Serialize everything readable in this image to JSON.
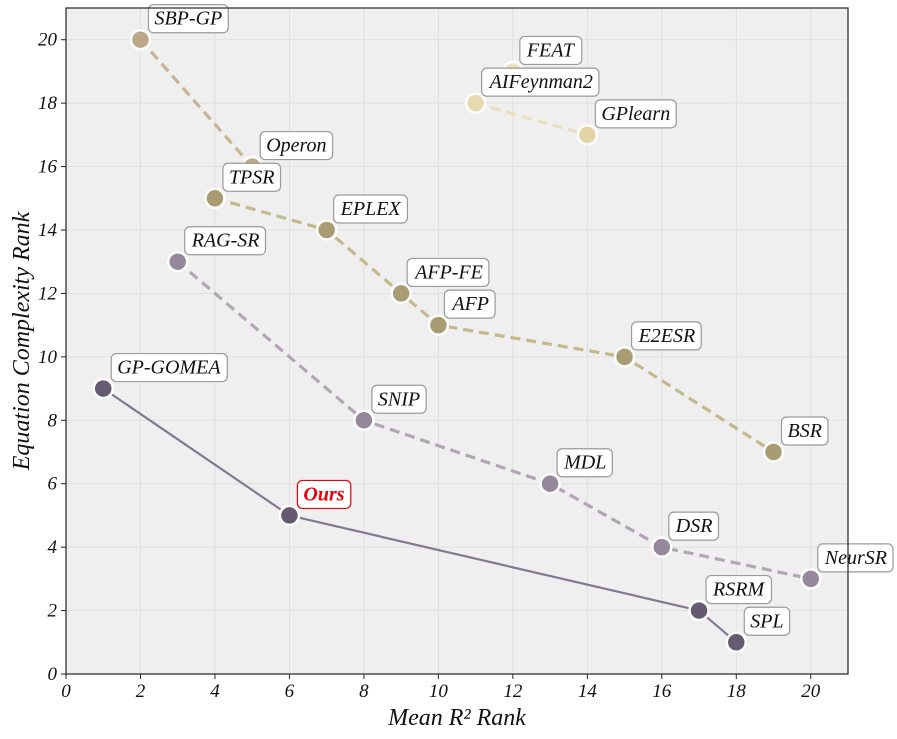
{
  "chart_data": {
    "type": "scatter",
    "title": "",
    "xlabel": "Mean R² Rank",
    "ylabel": "Equation Complexity Rank",
    "xlim": [
      0,
      21
    ],
    "ylim": [
      0,
      21
    ],
    "xticks": [
      0,
      2,
      4,
      6,
      8,
      10,
      12,
      14,
      16,
      18,
      20
    ],
    "yticks": [
      0,
      2,
      4,
      6,
      8,
      10,
      12,
      14,
      16,
      18,
      20
    ],
    "grid": true,
    "legend": "none",
    "background": "#efefef",
    "points": [
      {
        "label": "SBP-GP",
        "x": 2,
        "y": 20,
        "color": "#bda889"
      },
      {
        "label": "Operon",
        "x": 5,
        "y": 16,
        "color": "#bda889"
      },
      {
        "label": "FEAT",
        "x": 12,
        "y": 19,
        "color": "#ece3bf"
      },
      {
        "label": "AIFeynman2",
        "x": 11,
        "y": 18,
        "color": "#e6dab0"
      },
      {
        "label": "GPlearn",
        "x": 14,
        "y": 17,
        "color": "#e2d4a4"
      },
      {
        "label": "TPSR",
        "x": 4,
        "y": 15,
        "color": "#aa9c72"
      },
      {
        "label": "EPLEX",
        "x": 7,
        "y": 14,
        "color": "#aa9c72"
      },
      {
        "label": "AFP-FE",
        "x": 9,
        "y": 12,
        "color": "#aa9c72"
      },
      {
        "label": "AFP",
        "x": 10,
        "y": 11,
        "color": "#aa9c72"
      },
      {
        "label": "E2ESR",
        "x": 15,
        "y": 10,
        "color": "#aa9c72"
      },
      {
        "label": "BSR",
        "x": 19,
        "y": 7,
        "color": "#aa9c72"
      },
      {
        "label": "RAG-SR",
        "x": 3,
        "y": 13,
        "color": "#95889a"
      },
      {
        "label": "SNIP",
        "x": 8,
        "y": 8,
        "color": "#95889a"
      },
      {
        "label": "MDL",
        "x": 13,
        "y": 6,
        "color": "#95889a"
      },
      {
        "label": "DSR",
        "x": 16,
        "y": 4,
        "color": "#95889a"
      },
      {
        "label": "NeurSR",
        "x": 20,
        "y": 3,
        "color": "#95889a"
      },
      {
        "label": "GP-GOMEA",
        "x": 1,
        "y": 9,
        "color": "#655a72"
      },
      {
        "label": "Ours",
        "x": 6,
        "y": 5,
        "color": "#655a72",
        "highlight": true
      },
      {
        "label": "RSRM",
        "x": 17,
        "y": 2,
        "color": "#655a72"
      },
      {
        "label": "SPL",
        "x": 18,
        "y": 1,
        "color": "#655a72"
      }
    ],
    "lines": [
      {
        "points": [
          "SBP-GP",
          "Operon"
        ],
        "style": "dashed",
        "color": "#c6b595"
      },
      {
        "points": [
          "AIFeynman2",
          "GPlearn"
        ],
        "style": "dashed",
        "color": "#e9dfbd"
      },
      {
        "points": [
          "TPSR",
          "EPLEX",
          "AFP-FE",
          "AFP",
          "E2ESR",
          "BSR"
        ],
        "style": "dashed",
        "color": "#c4b88c"
      },
      {
        "points": [
          "RAG-SR",
          "SNIP",
          "MDL",
          "DSR",
          "NeurSR"
        ],
        "style": "dashed",
        "color": "#b2a5b4"
      },
      {
        "points": [
          "GP-GOMEA",
          "Ours",
          "RSRM",
          "SPL"
        ],
        "style": "solid",
        "color": "#837892"
      }
    ]
  }
}
